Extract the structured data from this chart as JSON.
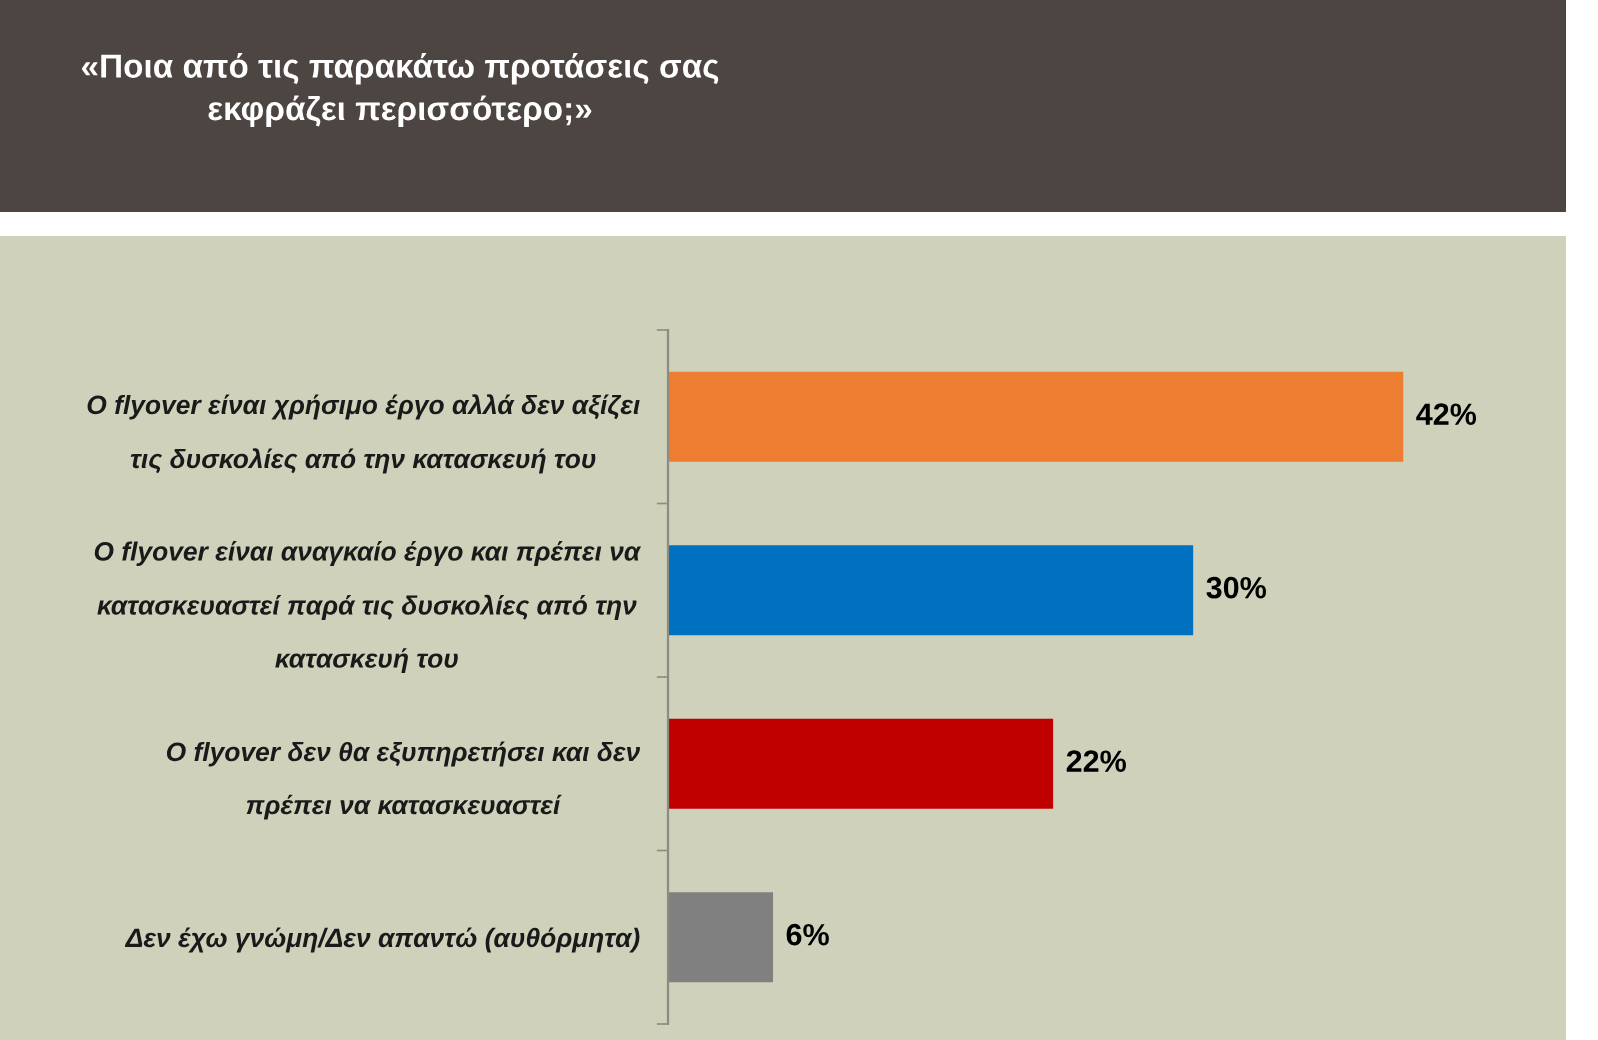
{
  "chart_data": {
    "type": "bar",
    "orientation": "horizontal",
    "title": "«Ποια από τις παρακάτω προτάσεις σας\nεκφράζει περισσότερο;»",
    "categories": [
      "Ο flyover είναι χρήσιμο έργο αλλά δεν αξίζει\nτις δυσκολίες από την κατασκευή του",
      "Ο flyover είναι αναγκαίο έργο και πρέπει να\nκατασκευαστεί παρά τις δυσκολίες από την\nκατασκευή του",
      "Ο flyover δεν θα εξυπηρετήσει και δεν\nπρέπει να κατασκευαστεί",
      "Δεν έχω γνώμη/Δεν απαντώ (αυθόρμητα)"
    ],
    "values": [
      42,
      30,
      22,
      6
    ],
    "colors": [
      "#ed7d31",
      "#0070c0",
      "#c00000",
      "#808080"
    ],
    "value_labels": [
      "42%",
      "30%",
      "22%",
      "6%"
    ],
    "tick_labels": "y"
  }
}
